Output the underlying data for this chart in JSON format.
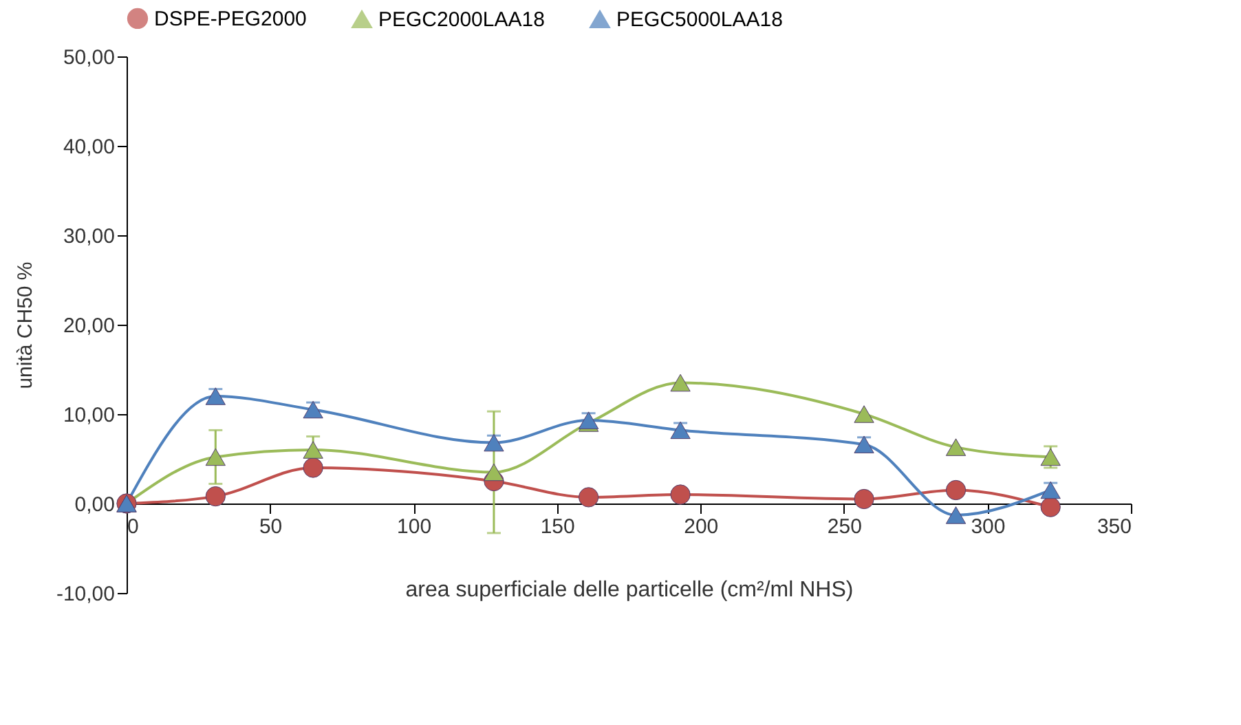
{
  "chart_data": {
    "type": "line",
    "xlabel": "area superficiale delle particelle (cm²/ml NHS)",
    "ylabel": "unità CH50 %",
    "x": [
      0,
      31,
      65,
      128,
      161,
      193,
      257,
      289,
      322
    ],
    "series": [
      {
        "name": "DSPE-PEG2000",
        "color": "#c0504d",
        "marker": "circle",
        "values": [
          0,
          0.8,
          4.0,
          2.5,
          0.7,
          1.0,
          0.5,
          1.5,
          -0.4
        ]
      },
      {
        "name": "PEGC2000LAA18",
        "color": "#9bbb59",
        "marker": "triangle",
        "values": [
          0,
          5.2,
          6.0,
          3.5,
          9.0,
          13.5,
          10.0,
          6.3,
          5.2
        ],
        "errors": [
          null,
          3.0,
          1.5,
          6.8,
          null,
          null,
          null,
          null,
          1.2
        ]
      },
      {
        "name": "PEGC5000LAA18",
        "color": "#4f81bd",
        "marker": "triangle",
        "values": [
          0,
          12.0,
          10.5,
          6.8,
          9.3,
          8.2,
          6.6,
          -1.3,
          1.5
        ],
        "errors": [
          null,
          0.8,
          0.8,
          0.8,
          0.8,
          0.8,
          0.8,
          null,
          0.8
        ]
      }
    ],
    "xlim": [
      0,
      350
    ],
    "xticks": [
      0,
      50,
      100,
      150,
      200,
      250,
      300,
      350
    ],
    "ylim": [
      -10,
      50
    ],
    "yticks": [
      {
        "value": -10,
        "label": "-10,00"
      },
      {
        "value": 0,
        "label": "0,00"
      },
      {
        "value": 10,
        "label": "10,00"
      },
      {
        "value": 20,
        "label": "20,00"
      },
      {
        "value": 30,
        "label": "30,00"
      },
      {
        "value": 40,
        "label": "40,00"
      },
      {
        "value": 50,
        "label": "50,00"
      }
    ],
    "legend": "top",
    "grid": false
  }
}
